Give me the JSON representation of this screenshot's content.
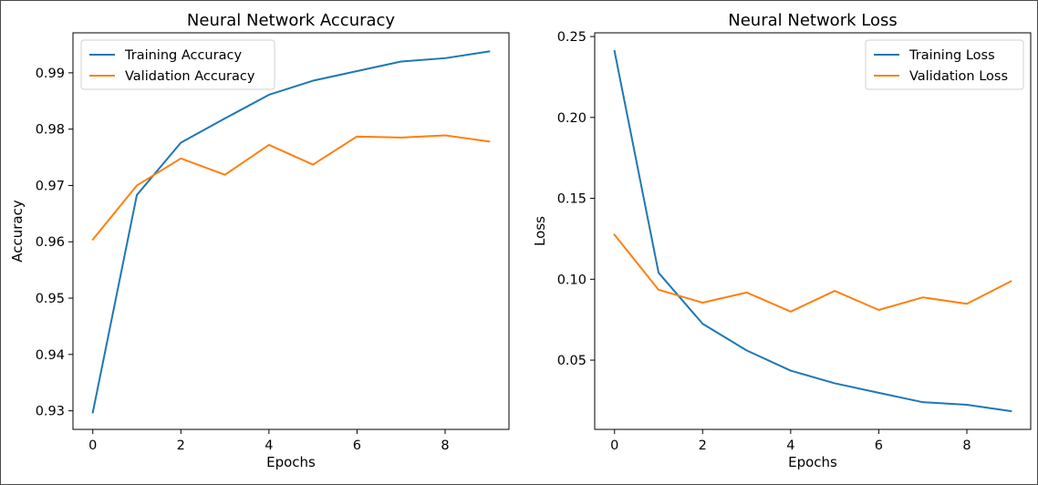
{
  "chart_data": [
    {
      "type": "line",
      "title": "Neural Network Accuracy",
      "xlabel": "Epochs",
      "ylabel": "Accuracy",
      "xlim": [
        -0.45,
        9.45
      ],
      "ylim": [
        0.9267,
        0.9971
      ],
      "xticks": [
        0,
        2,
        4,
        6,
        8
      ],
      "yticks": [
        0.93,
        0.94,
        0.95,
        0.96,
        0.97,
        0.98,
        0.99
      ],
      "ytick_labels": [
        "0.93",
        "0.94",
        "0.95",
        "0.96",
        "0.97",
        "0.98",
        "0.99"
      ],
      "grid": false,
      "legend_position": "upper-left",
      "x": [
        0,
        1,
        2,
        3,
        4,
        5,
        6,
        7,
        8,
        9
      ],
      "series": [
        {
          "name": "Training Accuracy",
          "color": "#1f77b4",
          "values": [
            0.9297,
            0.9683,
            0.9776,
            0.9819,
            0.9861,
            0.9886,
            0.9903,
            0.992,
            0.9926,
            0.9938
          ]
        },
        {
          "name": "Validation Accuracy",
          "color": "#ff7f0e",
          "values": [
            0.9604,
            0.97,
            0.9748,
            0.9719,
            0.9772,
            0.9737,
            0.9787,
            0.9785,
            0.9789,
            0.9778
          ]
        }
      ]
    },
    {
      "type": "line",
      "title": "Neural Network Loss",
      "xlabel": "Epochs",
      "ylabel": "Loss",
      "xlim": [
        -0.45,
        9.45
      ],
      "ylim": [
        0.0072,
        0.2523
      ],
      "xticks": [
        0,
        2,
        4,
        6,
        8
      ],
      "yticks": [
        0.05,
        0.1,
        0.15,
        0.2,
        0.25
      ],
      "ytick_labels": [
        "0.05",
        "0.10",
        "0.15",
        "0.20",
        "0.25"
      ],
      "grid": false,
      "legend_position": "upper-right",
      "x": [
        0,
        1,
        2,
        3,
        4,
        5,
        6,
        7,
        8,
        9
      ],
      "series": [
        {
          "name": "Training Loss",
          "color": "#1f77b4",
          "values": [
            0.241,
            0.104,
            0.0725,
            0.056,
            0.0435,
            0.0357,
            0.0298,
            0.024,
            0.0224,
            0.0185
          ]
        },
        {
          "name": "Validation Loss",
          "color": "#ff7f0e",
          "values": [
            0.1275,
            0.0935,
            0.0855,
            0.0918,
            0.08,
            0.0928,
            0.081,
            0.0888,
            0.0848,
            0.0987
          ]
        }
      ]
    }
  ]
}
